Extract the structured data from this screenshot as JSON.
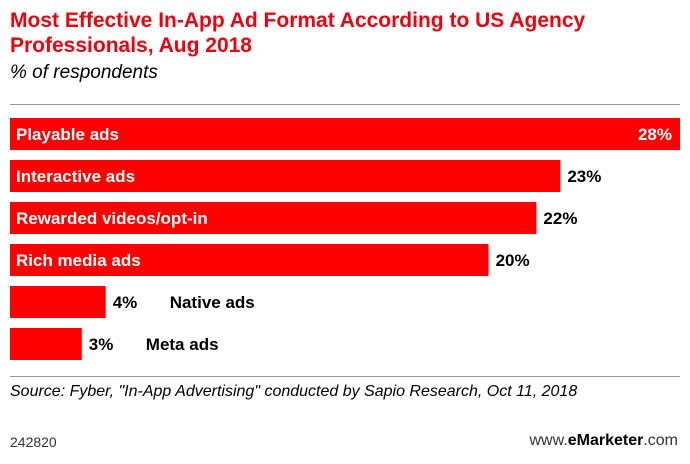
{
  "title": "Most Effective In-App Ad Format According to US Agency Professionals, Aug 2018",
  "subtitle": "% of respondents",
  "source": "Source: Fyber, \"In-App Advertising\" conducted by Sapio Research, Oct 11, 2018",
  "footer": {
    "id": "242820",
    "brand_prefix": "www.",
    "brand_name": "eMarketer",
    "brand_suffix": ".com"
  },
  "colors": {
    "accent": "#e8000e",
    "bar": "#ff0000"
  },
  "chart_data": {
    "type": "bar",
    "orientation": "horizontal",
    "categories": [
      "Playable ads",
      "Interactive ads",
      "Rewarded videos/opt-in",
      "Rich media ads",
      "Native ads",
      "Meta ads"
    ],
    "values": [
      28,
      23,
      22,
      20,
      4,
      3
    ],
    "value_labels": [
      "28%",
      "23%",
      "22%",
      "20%",
      "4%",
      "3%"
    ],
    "xlim": [
      0,
      28
    ],
    "grid": false,
    "legend": "none"
  }
}
